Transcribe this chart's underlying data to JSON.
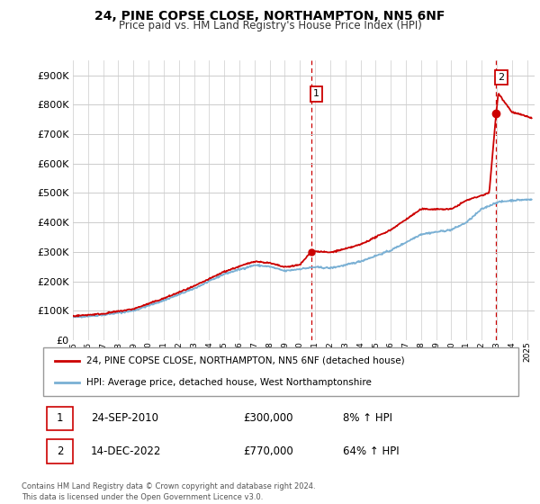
{
  "title": "24, PINE COPSE CLOSE, NORTHAMPTON, NN5 6NF",
  "subtitle": "Price paid vs. HM Land Registry's House Price Index (HPI)",
  "xlim_start": 1995.0,
  "xlim_end": 2025.5,
  "ylim": [
    0,
    950000
  ],
  "yticks": [
    0,
    100000,
    200000,
    300000,
    400000,
    500000,
    600000,
    700000,
    800000,
    900000
  ],
  "ytick_labels": [
    "£0",
    "£100K",
    "£200K",
    "£300K",
    "£400K",
    "£500K",
    "£600K",
    "£700K",
    "£800K",
    "£900K"
  ],
  "line_color_red": "#cc0000",
  "line_color_blue": "#7ab0d4",
  "transaction1_x": 2010.73,
  "transaction1_y": 300000,
  "transaction1_label": "1",
  "transaction2_x": 2022.96,
  "transaction2_y": 770000,
  "transaction2_label": "2",
  "legend_entries": [
    "24, PINE COPSE CLOSE, NORTHAMPTON, NN5 6NF (detached house)",
    "HPI: Average price, detached house, West Northamptonshire"
  ],
  "note1_label": "1",
  "note1_date": "24-SEP-2010",
  "note1_price": "£300,000",
  "note1_hpi": "8% ↑ HPI",
  "note2_label": "2",
  "note2_date": "14-DEC-2022",
  "note2_price": "£770,000",
  "note2_hpi": "64% ↑ HPI",
  "footer": "Contains HM Land Registry data © Crown copyright and database right 2024.\nThis data is licensed under the Open Government Licence v3.0.",
  "background_color": "#ffffff",
  "grid_color": "#cccccc"
}
